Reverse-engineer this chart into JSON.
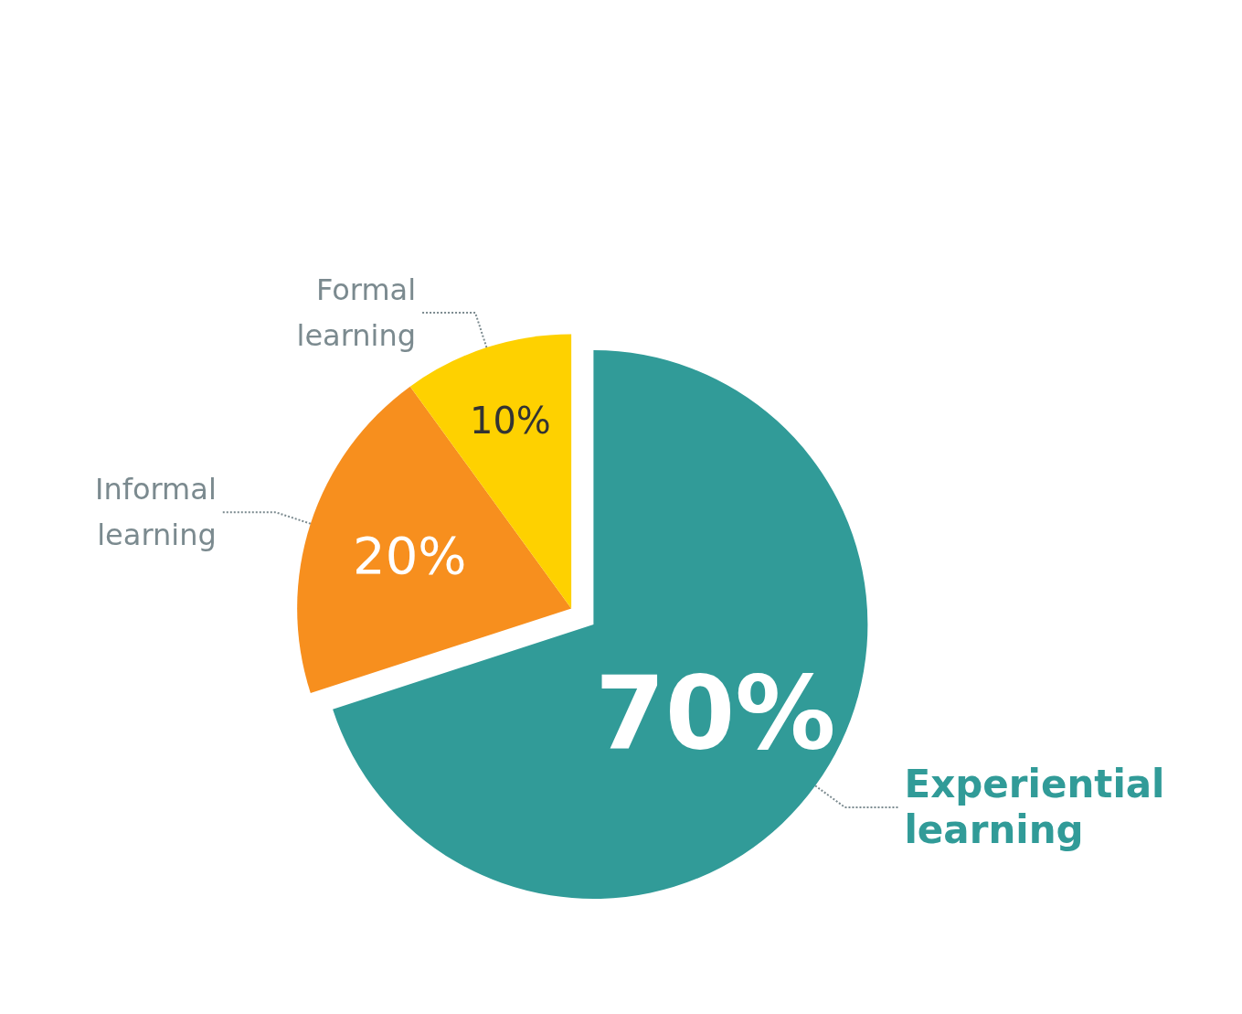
{
  "chart_data": {
    "type": "pie",
    "categories": [
      "Experiential learning",
      "Informal learning",
      "Formal learning"
    ],
    "values": [
      70,
      20,
      10
    ],
    "colors": [
      "#319b98",
      "#f78f1e",
      "#fed100"
    ],
    "value_labels": [
      "70%",
      "20%",
      "10%"
    ],
    "legend": false
  }
}
